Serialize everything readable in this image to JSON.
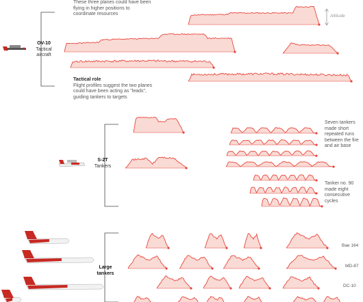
{
  "groups": [
    {
      "id": "ov10",
      "name": "OV-10",
      "desc": [
        "Tactical",
        "aircraft"
      ]
    },
    {
      "id": "s2t",
      "name": "S-2T",
      "desc": [
        "Tankers"
      ]
    },
    {
      "id": "large",
      "name": "Large",
      "desc": [
        "tankers"
      ]
    }
  ],
  "annotations": {
    "higher_positions": [
      "These three planes could have been",
      "flying in higher positions to",
      "coordinate resources"
    ],
    "altitude": "Altitude",
    "tactical_role_title": "Tactical role",
    "tactical_role_body": [
      "Flight profiles suggest the two planes",
      "could have been acting as \"leads\",",
      "guiding tankers to targets"
    ],
    "seven_tankers": [
      "Seven tankers",
      "made short",
      "repeated runs",
      "between the fire",
      "and air base"
    ],
    "tanker_90": [
      "Tanker no. 90",
      "made eight",
      "consecutive",
      "cycles"
    ]
  },
  "tanker_names": [
    "Bae 164",
    "MD-87",
    "DC-10"
  ],
  "colors": {
    "profile_line": "#e8453c",
    "profile_fill": "#f8d3cd",
    "bracket": "#444444",
    "aircraft_red": "#c62a22"
  }
}
